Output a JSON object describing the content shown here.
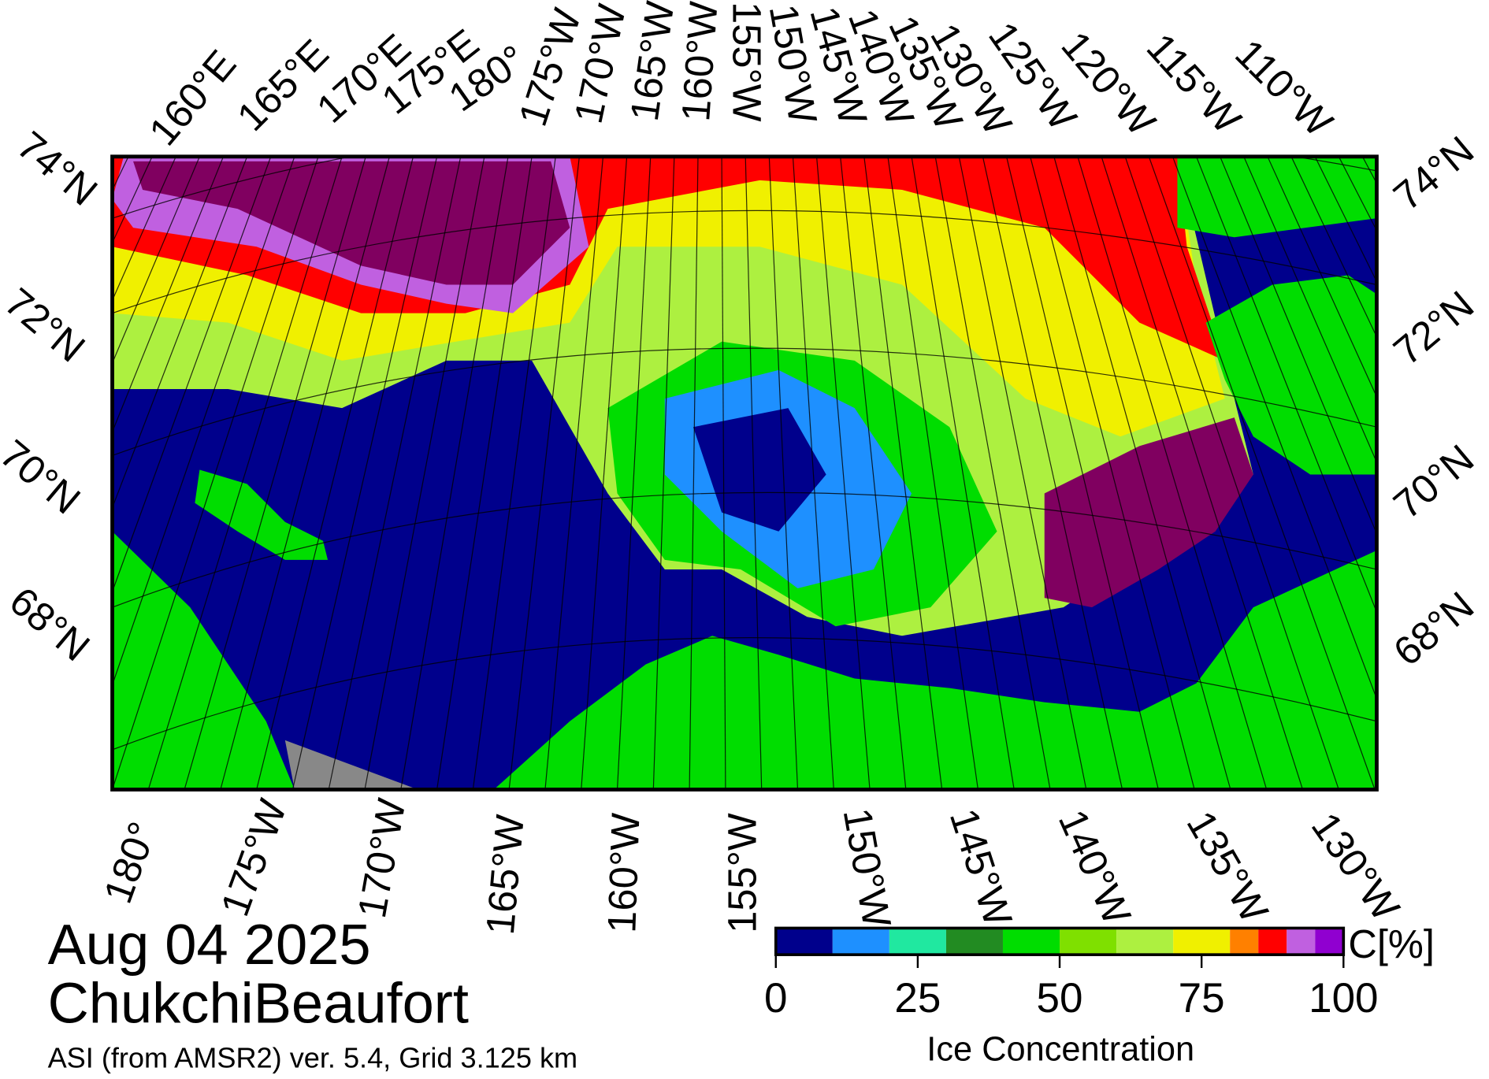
{
  "map": {
    "top_lon_labels": [
      "160°E",
      "165°E",
      "170°E",
      "175°E",
      "180°",
      "175°W",
      "170°W",
      "165°W",
      "160°W",
      "155°W",
      "150°W",
      "145°W",
      "140°W",
      "135°W",
      "130°W",
      "125°W",
      "120°W",
      "115°W",
      "110°W"
    ],
    "bottom_lon_labels": [
      "180°",
      "175°W",
      "170°W",
      "165°W",
      "160°W",
      "155°W",
      "150°W",
      "145°W",
      "140°W",
      "135°W",
      "130°W"
    ],
    "left_lat_labels": [
      "74°N",
      "72°N",
      "70°N",
      "68°N"
    ],
    "right_lat_labels": [
      "74°N",
      "72°N",
      "70°N",
      "68°N"
    ]
  },
  "title": "Aug 04 2025",
  "region": "ChukchiBeaufort",
  "subtitle": "ASI (from AMSR2) ver. 5.4,  Grid 3.125 km",
  "colorbar": {
    "label": "Ice Concentration",
    "unit": "C[%]",
    "range": [
      0,
      100
    ],
    "ticks": [
      0,
      25,
      50,
      75,
      100
    ],
    "bounds": [
      0,
      10,
      20,
      30,
      40,
      50,
      60,
      70,
      80,
      85,
      90,
      95,
      100
    ],
    "colors": [
      "#00008c",
      "#1e90ff",
      "#20e8a0",
      "#228b22",
      "#00dd00",
      "#7fe000",
      "#adf040",
      "#f0f000",
      "#ff8000",
      "#ff0000",
      "#c060e0",
      "#9000d0"
    ]
  }
}
